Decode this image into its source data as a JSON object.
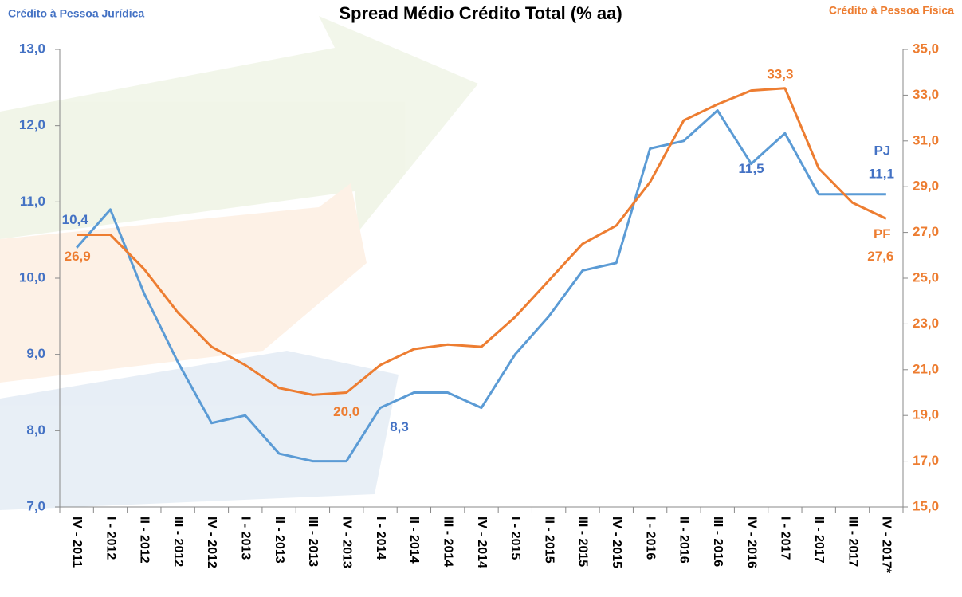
{
  "chart_data": {
    "type": "line",
    "title": "Spread Médio Crédito Total (% aa)",
    "y_label": "Crédito à Pessoa Jurídica",
    "y2_label": "Crédito à Pessoa Física",
    "categories": [
      "IV - 2011",
      "I - 2012",
      "II - 2012",
      "III - 2012",
      "IV - 2012",
      "I - 2013",
      "II - 2013",
      "III - 2013",
      "IV - 2013",
      "I - 2014",
      "II - 2014",
      "III - 2014",
      "IV - 2014",
      "I - 2015",
      "II - 2015",
      "III - 2015",
      "IV - 2015",
      "I - 2016",
      "II - 2016",
      "III - 2016",
      "IV - 2016",
      "I - 2017",
      "II - 2017",
      "III - 2017",
      "IV - 2017*"
    ],
    "series": [
      {
        "name": "PJ",
        "color": "#5b9bd5",
        "label_color": "#4472c4",
        "axis": "y",
        "values": [
          10.4,
          10.9,
          9.8,
          8.9,
          8.1,
          8.2,
          7.7,
          7.6,
          7.6,
          8.3,
          8.5,
          8.5,
          8.3,
          9.0,
          9.5,
          10.1,
          10.2,
          11.7,
          11.8,
          12.2,
          11.5,
          11.9,
          11.1,
          11.1,
          11.1
        ],
        "value_labels": [
          "10,4",
          null,
          null,
          null,
          null,
          null,
          null,
          null,
          null,
          "8,3",
          null,
          null,
          null,
          null,
          null,
          null,
          null,
          null,
          null,
          null,
          "11,5",
          null,
          null,
          null,
          "11,1"
        ]
      },
      {
        "name": "PF",
        "color": "#ed7d31",
        "label_color": "#ed7d31",
        "axis": "y2",
        "values": [
          26.9,
          26.9,
          25.4,
          23.5,
          22.0,
          21.2,
          20.2,
          19.9,
          20.0,
          21.2,
          21.9,
          22.1,
          22.0,
          23.3,
          24.9,
          26.5,
          27.3,
          29.2,
          31.9,
          32.6,
          33.2,
          33.3,
          29.8,
          28.3,
          27.6
        ],
        "value_labels": [
          "26,9",
          null,
          null,
          null,
          null,
          null,
          null,
          null,
          "20,0",
          null,
          null,
          null,
          null,
          null,
          null,
          null,
          null,
          null,
          null,
          null,
          null,
          "33,3",
          null,
          null,
          "27,6"
        ]
      }
    ],
    "ylim": [
      7,
      13
    ],
    "yticks": [
      {
        "value": 7,
        "label": "7,0"
      },
      {
        "value": 8,
        "label": "8,0"
      },
      {
        "value": 9,
        "label": "9,0"
      },
      {
        "value": 10,
        "label": "10,0"
      },
      {
        "value": 11,
        "label": "11,0"
      },
      {
        "value": 12,
        "label": "12,0"
      },
      {
        "value": 13,
        "label": "13,0"
      }
    ],
    "y2lim": [
      15,
      35
    ],
    "y2ticks": [
      {
        "value": 15,
        "label": "15,0"
      },
      {
        "value": 17,
        "label": "17,0"
      },
      {
        "value": 19,
        "label": "19,0"
      },
      {
        "value": 21,
        "label": "21,0"
      },
      {
        "value": 23,
        "label": "23,0"
      },
      {
        "value": 25,
        "label": "25,0"
      },
      {
        "value": 27,
        "label": "27,0"
      },
      {
        "value": 29,
        "label": "29,0"
      },
      {
        "value": 31,
        "label": "31,0"
      },
      {
        "value": 33,
        "label": "33,0"
      },
      {
        "value": 35,
        "label": "35,0"
      }
    ],
    "grid": false
  }
}
